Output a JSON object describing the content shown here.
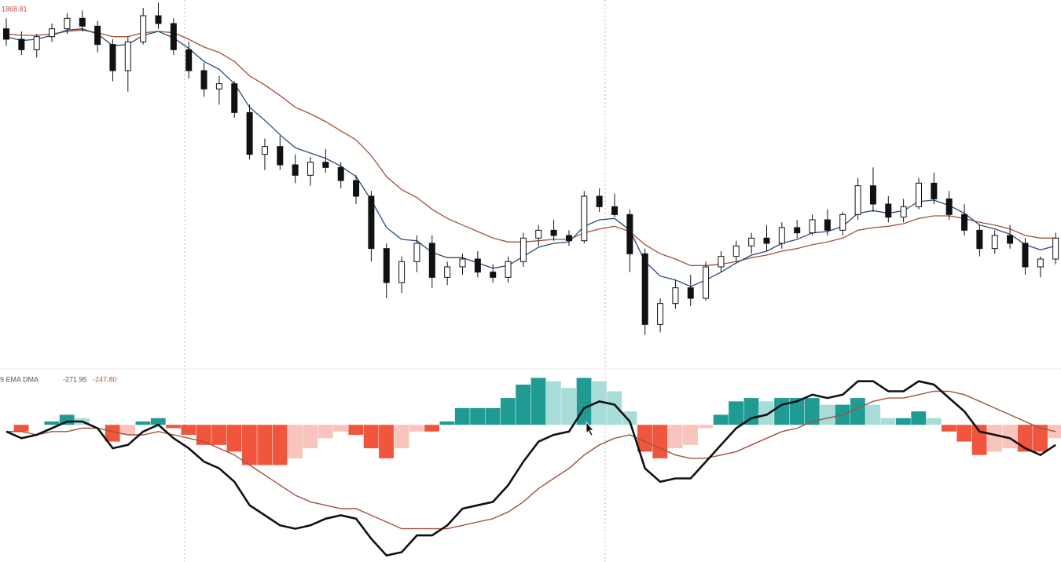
{
  "chart_data": [
    {
      "type": "candlestick",
      "annotations": [
        "1868.81"
      ],
      "open": [
        1858,
        1850,
        1842,
        1852,
        1858,
        1866,
        1860,
        1846,
        1826,
        1848,
        1868,
        1862,
        1842,
        1826,
        1812,
        1816,
        1794,
        1762,
        1768,
        1754,
        1746,
        1756,
        1752,
        1742,
        1730,
        1690,
        1664,
        1680,
        1694,
        1668,
        1676,
        1682,
        1672,
        1668,
        1680,
        1698,
        1704,
        1700,
        1696,
        1730,
        1722,
        1716,
        1686,
        1632,
        1648,
        1660,
        1652,
        1676,
        1684,
        1692,
        1698,
        1694,
        1706,
        1702,
        1712,
        1704,
        1716,
        1738,
        1724,
        1714,
        1722,
        1740,
        1728,
        1716,
        1704,
        1690,
        1700,
        1694,
        1676,
        1682
      ],
      "high": [
        1866,
        1856,
        1854,
        1862,
        1870,
        1872,
        1864,
        1850,
        1852,
        1874,
        1878,
        1866,
        1848,
        1832,
        1822,
        1818,
        1800,
        1774,
        1776,
        1762,
        1760,
        1766,
        1756,
        1746,
        1734,
        1694,
        1684,
        1700,
        1700,
        1680,
        1686,
        1688,
        1678,
        1684,
        1702,
        1708,
        1712,
        1704,
        1734,
        1736,
        1732,
        1720,
        1690,
        1652,
        1666,
        1670,
        1680,
        1688,
        1696,
        1702,
        1708,
        1710,
        1712,
        1716,
        1720,
        1718,
        1744,
        1752,
        1730,
        1728,
        1744,
        1748,
        1734,
        1724,
        1708,
        1704,
        1708,
        1698,
        1684,
        1702
      ],
      "low": [
        1845,
        1838,
        1836,
        1848,
        1854,
        1856,
        1840,
        1818,
        1810,
        1846,
        1858,
        1838,
        1820,
        1806,
        1800,
        1790,
        1758,
        1750,
        1750,
        1740,
        1738,
        1748,
        1736,
        1724,
        1680,
        1652,
        1656,
        1672,
        1660,
        1662,
        1670,
        1668,
        1664,
        1664,
        1676,
        1692,
        1696,
        1692,
        1694,
        1718,
        1714,
        1672,
        1624,
        1626,
        1644,
        1646,
        1650,
        1672,
        1680,
        1686,
        1688,
        1690,
        1698,
        1700,
        1700,
        1700,
        1712,
        1718,
        1710,
        1710,
        1720,
        1724,
        1712,
        1700,
        1684,
        1686,
        1690,
        1670,
        1668,
        1678
      ],
      "close": [
        1850,
        1842,
        1852,
        1858,
        1866,
        1860,
        1846,
        1826,
        1848,
        1868,
        1862,
        1842,
        1826,
        1812,
        1816,
        1794,
        1762,
        1768,
        1754,
        1746,
        1756,
        1752,
        1742,
        1730,
        1690,
        1664,
        1680,
        1694,
        1668,
        1676,
        1682,
        1672,
        1668,
        1680,
        1698,
        1704,
        1700,
        1696,
        1730,
        1722,
        1716,
        1686,
        1632,
        1648,
        1660,
        1652,
        1676,
        1684,
        1692,
        1698,
        1694,
        1706,
        1702,
        1712,
        1704,
        1716,
        1738,
        1724,
        1714,
        1722,
        1740,
        1728,
        1716,
        1704,
        1690,
        1700,
        1694,
        1676,
        1682,
        1698
      ],
      "up_color": "#ffffff",
      "down_color": "#111111",
      "series": [
        {
          "color": "#a0523d",
          "values": [
            1854,
            1853,
            1853,
            1854,
            1856,
            1857,
            1855,
            1852,
            1852,
            1855,
            1856,
            1855,
            1850,
            1844,
            1840,
            1833,
            1822,
            1815,
            1807,
            1798,
            1793,
            1787,
            1780,
            1773,
            1761,
            1745,
            1735,
            1729,
            1720,
            1713,
            1708,
            1703,
            1698,
            1695,
            1695,
            1696,
            1697,
            1697,
            1702,
            1705,
            1707,
            1703,
            1693,
            1686,
            1682,
            1677,
            1677,
            1678,
            1680,
            1683,
            1685,
            1688,
            1690,
            1693,
            1695,
            1698,
            1704,
            1706,
            1707,
            1709,
            1713,
            1715,
            1715,
            1713,
            1710,
            1708,
            1705,
            1700,
            1698,
            1698
          ]
        },
        {
          "color": "#2c4a7a",
          "values": [
            1852,
            1849,
            1850,
            1853,
            1857,
            1858,
            1854,
            1845,
            1846,
            1853,
            1856,
            1851,
            1843,
            1833,
            1827,
            1816,
            1798,
            1788,
            1777,
            1767,
            1763,
            1759,
            1753,
            1745,
            1727,
            1706,
            1697,
            1696,
            1687,
            1683,
            1683,
            1679,
            1675,
            1677,
            1684,
            1691,
            1694,
            1695,
            1707,
            1712,
            1713,
            1704,
            1680,
            1669,
            1666,
            1661,
            1666,
            1672,
            1679,
            1685,
            1688,
            1694,
            1697,
            1702,
            1703,
            1707,
            1717,
            1719,
            1717,
            1719,
            1726,
            1727,
            1723,
            1717,
            1708,
            1705,
            1701,
            1693,
            1689,
            1692
          ]
        }
      ],
      "ylim": [
        1604,
        1880
      ]
    },
    {
      "type": "macd",
      "annotations": [
        "9 EMA DMA",
        "-271.95",
        "-247.80"
      ],
      "histogram": [
        0,
        -2,
        0,
        1,
        3,
        2,
        0,
        -5,
        -3,
        1,
        2,
        -1,
        -3,
        -6,
        -6,
        -8,
        -12,
        -12,
        -12,
        -10,
        -7,
        -4,
        -2,
        -3,
        -7,
        -10,
        -7,
        -2,
        -2,
        1,
        5,
        5,
        5,
        8,
        12,
        14,
        13,
        11,
        14,
        13,
        10,
        4,
        -8,
        -10,
        -7,
        -6,
        -1,
        3,
        7,
        8,
        7,
        8,
        8,
        8,
        6,
        6,
        8,
        6,
        2,
        2,
        4,
        2,
        -2,
        -5,
        -9,
        -8,
        -7,
        -8,
        -8,
        -4
      ],
      "colors": {
        "up_strong": "#1f9b94",
        "up_weak": "#a7dcd8",
        "down_strong": "#f0553d",
        "down_weak": "#f8c4bb"
      },
      "series": [
        {
          "color": "#111111",
          "values": [
            -2,
            -4,
            -3,
            -1,
            1,
            1,
            -1,
            -7,
            -6,
            -2,
            0,
            -4,
            -7,
            -11,
            -13,
            -17,
            -24,
            -27,
            -30,
            -31,
            -30,
            -28,
            -27,
            -28,
            -34,
            -39,
            -38,
            -33,
            -33,
            -30,
            -25,
            -24,
            -23,
            -18,
            -11,
            -5,
            -3,
            -2,
            5,
            7,
            6,
            1,
            -13,
            -17,
            -16,
            -16,
            -11,
            -6,
            -1,
            2,
            3,
            6,
            7,
            9,
            8,
            9,
            13,
            13,
            10,
            10,
            13,
            12,
            8,
            4,
            -2,
            -3,
            -4,
            -7,
            -9,
            -6
          ]
        },
        {
          "color": "#a0523d",
          "values": [
            -2,
            -2,
            -3,
            -2,
            -2,
            -1,
            -1,
            -2,
            -3,
            -3,
            -2,
            -3,
            -4,
            -5,
            -7,
            -9,
            -12,
            -15,
            -18,
            -21,
            -23,
            -24,
            -25,
            -25,
            -27,
            -29,
            -31,
            -31,
            -31,
            -31,
            -30,
            -29,
            -28,
            -26,
            -23,
            -19,
            -16,
            -13,
            -9,
            -6,
            -4,
            -3,
            -5,
            -7,
            -9,
            -10,
            -10,
            -9,
            -8,
            -6,
            -4,
            -2,
            -1,
            1,
            2,
            3,
            5,
            7,
            8,
            8,
            9,
            10,
            10,
            9,
            7,
            5,
            3,
            1,
            -1,
            -2
          ]
        }
      ],
      "ylim": [
        -40,
        12
      ]
    }
  ]
}
